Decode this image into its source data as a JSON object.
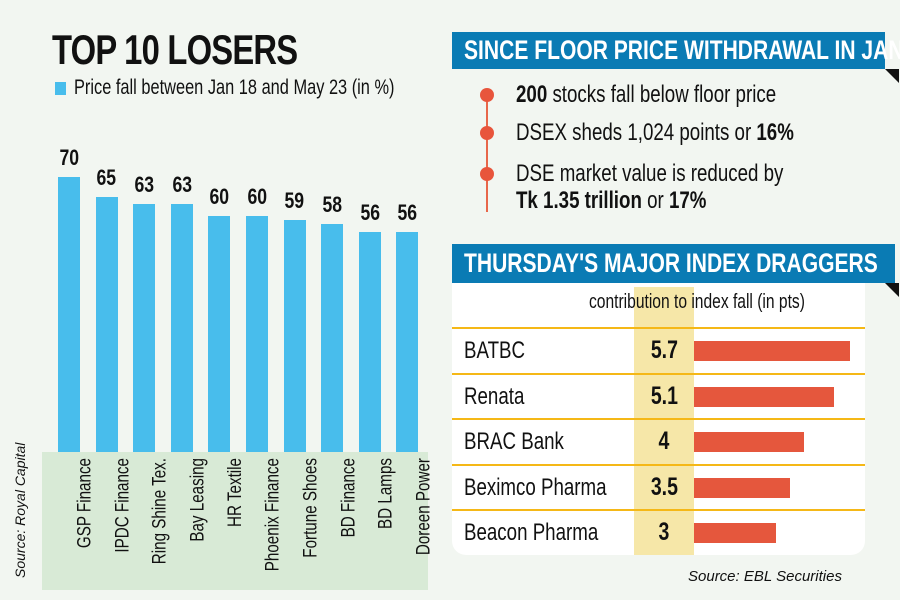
{
  "chart_data": [
    {
      "type": "bar",
      "title": "TOP 10 LOSERS",
      "legend": "Price fall between Jan 18 and May 23 (in %)",
      "categories": [
        "GSP Finance",
        "IPDC Finance",
        "Ring Shine Tex.",
        "Bay Leasing",
        "HR Textile",
        "Phoenix Finance",
        "Fortune Shoes",
        "BD Finance",
        "BD Lamps",
        "Doreen Power"
      ],
      "values": [
        70,
        65,
        63,
        63,
        60,
        60,
        59,
        58,
        56,
        56
      ],
      "color": "#48bdec",
      "source": "Source: Royal Capital"
    },
    {
      "type": "bar",
      "orientation": "horizontal",
      "title": "THURSDAY'S MAJOR INDEX DRAGGERS",
      "subtitle": "contribution to index fall (in pts)",
      "categories": [
        "BATBC",
        "Renata",
        "BRAC Bank",
        "Beximco Pharma",
        "Beacon Pharma"
      ],
      "values": [
        5.7,
        5.1,
        4,
        3.5,
        3
      ],
      "labels": [
        "5.7",
        "5.1",
        "4",
        "3.5",
        "3"
      ],
      "color": "#e5573d",
      "source": "Source: EBL Securities"
    }
  ],
  "since": {
    "title": "SINCE FLOOR PRICE WITHDRAWAL IN JAN",
    "b1_bold": "200",
    "b1_text": " stocks fall below floor price",
    "b2_text": "DSEX sheds 1,024 points or ",
    "b2_bold": "16%",
    "b3_line1": "DSE market value is reduced by",
    "b3_bold1": "Tk 1.35 trillion",
    "b3_mid": " or ",
    "b3_bold2": "17%"
  },
  "colors": {
    "header": "#0a7bb4",
    "accent": "#e8553c",
    "highlight": "#f6e7a8",
    "background": "#f2f6f1"
  }
}
